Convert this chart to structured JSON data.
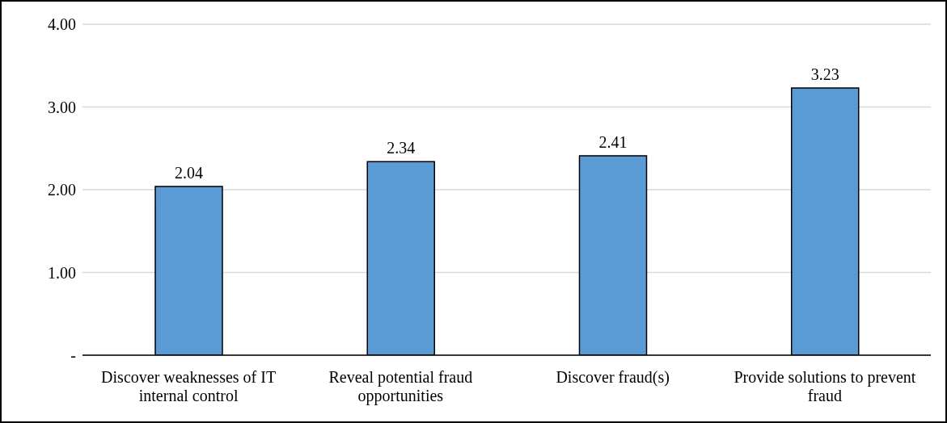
{
  "chart_data": {
    "type": "bar",
    "categories": [
      "Discover weaknesses of IT internal control",
      "Reveal potential fraud opportunities",
      "Discover fraud(s)",
      "Provide solutions to prevent fraud"
    ],
    "values": [
      2.04,
      2.34,
      2.41,
      3.23
    ],
    "color": "#5b9bd5",
    "ylim": [
      0,
      4
    ],
    "yticks": [
      {
        "value": 0,
        "label": "-"
      },
      {
        "value": 1,
        "label": "1.00"
      },
      {
        "value": 2,
        "label": "2.00"
      },
      {
        "value": 3,
        "label": "3.00"
      },
      {
        "value": 4,
        "label": "4.00"
      }
    ],
    "grid": "y",
    "data_labels": true,
    "legend": false
  }
}
